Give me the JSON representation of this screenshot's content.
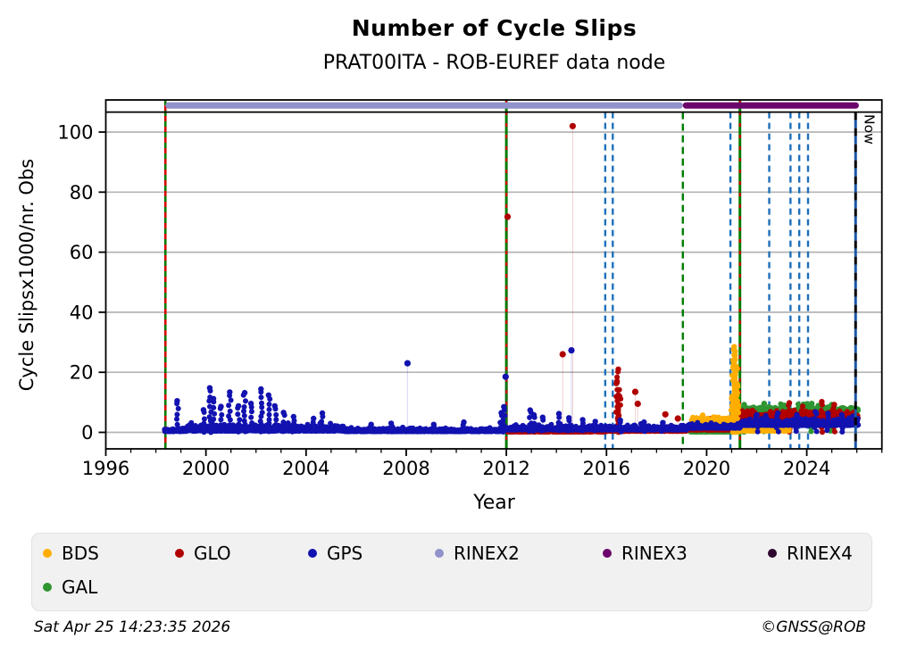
{
  "header": {
    "title": "Number of Cycle Slips",
    "subtitle": "PRAT00ITA - ROB-EUREF data node"
  },
  "footer": {
    "timestamp": "Sat Apr 25 14:23:35 2026",
    "credit": "©GNSS@ROB"
  },
  "legend": {
    "items": [
      {
        "label": "BDS",
        "color": "#ffae00"
      },
      {
        "label": "GLO",
        "color": "#b00000"
      },
      {
        "label": "GPS",
        "color": "#1212b0"
      },
      {
        "label": "RINEX2",
        "color": "#9191cb"
      },
      {
        "label": "RINEX3",
        "color": "#6b046b"
      },
      {
        "label": "RINEX4",
        "color": "#2d072d"
      },
      {
        "label": "GAL",
        "color": "#2f9632"
      }
    ]
  },
  "chart_data": {
    "type": "scatter",
    "title": "Number of Cycle Slips",
    "subtitle": "PRAT00ITA - ROB-EUREF data node",
    "xlabel": "Year",
    "ylabel": "Cycle Slipsx1000/nr. Obs",
    "xlim": [
      1996,
      2027.0
    ],
    "ylim": [
      -5.5,
      110.7
    ],
    "xticks_major": [
      1996,
      2000,
      2004,
      2008,
      2012,
      2016,
      2020,
      2024
    ],
    "xticks_minor_step": 1,
    "yticks": [
      0,
      20,
      40,
      60,
      80,
      100
    ],
    "grid": "horizontal",
    "grid_color": "#b4b4b4",
    "now_label": "Now",
    "now_x": 2025.95,
    "now_colors": [
      "#000000",
      "#1a56a8"
    ],
    "rinex_bars": [
      {
        "name": "RINEX2",
        "start": 1998.38,
        "end": 2019.05,
        "color": "#9191cb"
      },
      {
        "name": "RINEX3",
        "start": 2019.05,
        "end": 2026.08,
        "color": "#6b046b"
      }
    ],
    "event_lines": [
      {
        "x": 1998.38,
        "kind": "green-red"
      },
      {
        "x": 2012.0,
        "kind": "green-red-solid"
      },
      {
        "x": 2015.95,
        "kind": "blue"
      },
      {
        "x": 2016.25,
        "kind": "blue"
      },
      {
        "x": 2019.05,
        "kind": "green"
      },
      {
        "x": 2020.95,
        "kind": "blue"
      },
      {
        "x": 2021.33,
        "kind": "green-red-solid"
      },
      {
        "x": 2022.5,
        "kind": "blue"
      },
      {
        "x": 2023.35,
        "kind": "blue"
      },
      {
        "x": 2023.7,
        "kind": "blue"
      },
      {
        "x": 2024.05,
        "kind": "blue"
      }
    ],
    "event_colors": {
      "blue": "#1d6fba",
      "green": "#007d00",
      "red": "#d40000"
    },
    "series": [
      {
        "name": "GAL",
        "color": "#2f9632",
        "segments": [
          {
            "x0": 2019.35,
            "x1": 2021.35,
            "base": 0.0,
            "amp": 0.9,
            "step": 0.012
          },
          {
            "x0": 2021.35,
            "x1": 2026.05,
            "base": 6.0,
            "amp": 2.8,
            "step": 0.01
          }
        ],
        "spikes": [
          [
            2021.5,
            9.2
          ],
          [
            2022.3,
            9.6
          ],
          [
            2023.1,
            9.0
          ],
          [
            2024.2,
            9.6
          ],
          [
            2025.0,
            9.2
          ]
        ],
        "outliers": []
      },
      {
        "name": "GLO",
        "color": "#b00000",
        "segments": [
          {
            "x0": 2012.05,
            "x1": 2016.0,
            "base": 0.0,
            "amp": 1.0,
            "step": 0.012
          },
          {
            "x0": 2016.0,
            "x1": 2019.2,
            "base": 0.2,
            "amp": 1.3,
            "step": 0.012
          },
          {
            "x0": 2019.2,
            "x1": 2021.35,
            "base": 0.6,
            "amp": 1.4,
            "step": 0.012
          },
          {
            "x0": 2021.35,
            "x1": 2026.05,
            "base": 4.2,
            "amp": 3.2,
            "step": 0.01
          }
        ],
        "spikes": [
          [
            2016.42,
            17.0
          ],
          [
            2016.47,
            21.0
          ],
          [
            2016.52,
            12.0
          ],
          [
            2023.3,
            9.8
          ],
          [
            2024.6,
            10.2
          ],
          [
            2025.1,
            9.2
          ]
        ],
        "outliers": [
          [
            2012.05,
            71.8
          ],
          [
            2014.25,
            26.0
          ],
          [
            2014.65,
            102.0
          ],
          [
            2017.15,
            13.5
          ],
          [
            2017.25,
            9.5
          ],
          [
            2018.35,
            6.0
          ],
          [
            2018.85,
            4.6
          ],
          [
            2020.15,
            4.4
          ]
        ]
      },
      {
        "name": "BDS",
        "color": "#ffae00",
        "segments": [
          {
            "x0": 2019.4,
            "x1": 2021.0,
            "base": 3.0,
            "amp": 2.3,
            "step": 0.012
          },
          {
            "x0": 2021.35,
            "x1": 2023.3,
            "base": 0.2,
            "amp": 1.7,
            "step": 0.012
          }
        ],
        "spikes": [
          [
            2021.02,
            12.0
          ],
          [
            2021.06,
            24.0
          ],
          [
            2021.1,
            28.5
          ],
          [
            2021.14,
            27.0
          ],
          [
            2021.18,
            22.0
          ],
          [
            2021.22,
            16.0
          ],
          [
            2021.26,
            9.0
          ]
        ],
        "outliers": []
      },
      {
        "name": "GPS",
        "color": "#1212b0",
        "segments": [
          {
            "x0": 1998.35,
            "x1": 1999.2,
            "base": 0.1,
            "amp": 1.6,
            "step": 0.01
          },
          {
            "x0": 1999.2,
            "x1": 2005.5,
            "base": 0.1,
            "amp": 2.6,
            "step": 0.009
          },
          {
            "x0": 2005.5,
            "x1": 2011.9,
            "base": 0.1,
            "amp": 1.4,
            "step": 0.01
          },
          {
            "x0": 2011.9,
            "x1": 2019.2,
            "base": 0.6,
            "amp": 1.8,
            "step": 0.01
          },
          {
            "x0": 2019.2,
            "x1": 2021.35,
            "base": 1.2,
            "amp": 1.8,
            "step": 0.011
          },
          {
            "x0": 2021.35,
            "x1": 2026.05,
            "base": 2.0,
            "amp": 2.6,
            "step": 0.01
          }
        ],
        "spikes": [
          [
            1998.85,
            10.5
          ],
          [
            1999.9,
            7.5
          ],
          [
            2000.15,
            14.8
          ],
          [
            2000.3,
            11.2
          ],
          [
            2000.6,
            8.6
          ],
          [
            2000.95,
            13.4
          ],
          [
            2001.3,
            8.8
          ],
          [
            2001.55,
            13.2
          ],
          [
            2001.8,
            9.6
          ],
          [
            2002.2,
            14.4
          ],
          [
            2002.5,
            12.4
          ],
          [
            2002.75,
            8.8
          ],
          [
            2003.1,
            6.6
          ],
          [
            2003.5,
            5.2
          ],
          [
            2004.3,
            4.6
          ],
          [
            2004.65,
            6.4
          ],
          [
            2006.6,
            2.6
          ],
          [
            2007.4,
            3.0
          ],
          [
            2009.1,
            2.6
          ],
          [
            2010.3,
            3.4
          ],
          [
            2011.8,
            6.5
          ],
          [
            2011.9,
            8.5
          ],
          [
            2012.95,
            7.4
          ],
          [
            2013.1,
            5.8
          ],
          [
            2013.45,
            5.0
          ],
          [
            2014.1,
            6.2
          ],
          [
            2014.5,
            4.8
          ],
          [
            2015.05,
            4.2
          ],
          [
            2015.55,
            3.6
          ],
          [
            2016.55,
            4.0
          ],
          [
            2017.5,
            3.4
          ],
          [
            2018.25,
            3.2
          ],
          [
            2022.0,
            5.8
          ],
          [
            2022.85,
            6.4
          ],
          [
            2023.6,
            5.8
          ],
          [
            2024.35,
            6.8
          ],
          [
            2024.85,
            6.3
          ],
          [
            2025.4,
            5.8
          ]
        ],
        "outliers": [
          [
            2008.05,
            23.0
          ],
          [
            2011.97,
            18.5
          ],
          [
            2014.6,
            27.3
          ]
        ]
      }
    ]
  }
}
